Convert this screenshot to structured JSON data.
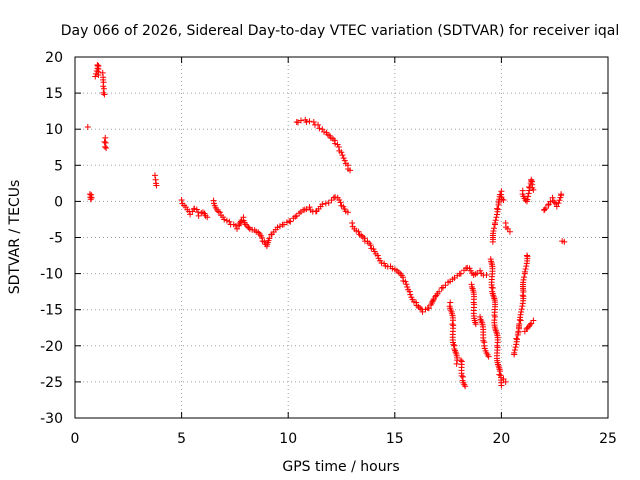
{
  "chart_data": {
    "type": "scatter",
    "title": "Day 066 of 2026, Sidereal Day-to-day VTEC variation (SDTVAR) for receiver iqal",
    "xlabel": "GPS time / hours",
    "ylabel": "SDTVAR / TECUs",
    "xlim": [
      0,
      25
    ],
    "ylim": [
      -30,
      20
    ],
    "xticks": [
      0,
      5,
      10,
      15,
      20,
      25
    ],
    "yticks": [
      20,
      15,
      10,
      5,
      0,
      -5,
      -10,
      -15,
      -20,
      -25,
      -30
    ],
    "grid": true,
    "marker": "plus",
    "color": "#ff0000",
    "series": [
      {
        "name": "SDTVAR",
        "segments": [
          [
            [
              0.6,
              10.3
            ]
          ],
          [
            [
              0.7,
              1.0
            ],
            [
              0.72,
              0.6
            ],
            [
              0.74,
              0.3
            ],
            [
              0.76,
              0.9
            ],
            [
              0.78,
              0.5
            ]
          ],
          [
            [
              0.95,
              17.3
            ],
            [
              1.05,
              18.9
            ],
            [
              1.1,
              17.5
            ]
          ],
          [
            [
              1.3,
              17.8
            ],
            [
              1.32,
              17.2
            ],
            [
              1.34,
              16.5
            ],
            [
              1.36,
              15.6
            ],
            [
              1.38,
              14.8
            ]
          ],
          [
            [
              1.42,
              8.8
            ],
            [
              1.44,
              8.1
            ],
            [
              1.46,
              7.4
            ]
          ],
          [
            [
              3.75,
              3.6
            ],
            [
              3.78,
              3.0
            ],
            [
              3.8,
              2.5
            ],
            [
              3.82,
              2.2
            ]
          ],
          [
            [
              5.0,
              0.2
            ],
            [
              5.2,
              -0.8
            ],
            [
              5.4,
              -1.8
            ],
            [
              5.6,
              -1.0
            ],
            [
              5.8,
              -2.0
            ],
            [
              6.0,
              -1.5
            ],
            [
              6.2,
              -2.2
            ]
          ],
          [
            [
              6.5,
              0.1
            ],
            [
              6.8,
              -1.5
            ],
            [
              7.0,
              -2.5
            ],
            [
              7.3,
              -3.2
            ],
            [
              7.6,
              -3.8
            ],
            [
              7.9,
              -2.2
            ],
            [
              8.2,
              -3.8
            ],
            [
              8.5,
              -4.2
            ],
            [
              8.8,
              -5.5
            ],
            [
              9.0,
              -6.2
            ],
            [
              9.2,
              -4.6
            ],
            [
              9.5,
              -3.6
            ],
            [
              9.8,
              -3.2
            ],
            [
              10.1,
              -2.8
            ],
            [
              10.4,
              -2.0
            ],
            [
              10.7,
              -1.2
            ],
            [
              11.0,
              -0.8
            ],
            [
              11.3,
              -1.4
            ],
            [
              11.6,
              -0.4
            ],
            [
              11.9,
              -0.2
            ],
            [
              12.2,
              0.6
            ],
            [
              12.5,
              -0.6
            ],
            [
              12.8,
              -1.5
            ]
          ],
          [
            [
              10.4,
              11.0
            ],
            [
              10.6,
              11.2
            ],
            [
              10.8,
              11.3
            ],
            [
              11.0,
              11.1
            ],
            [
              11.2,
              11.0
            ],
            [
              11.4,
              10.6
            ],
            [
              11.6,
              10.0
            ],
            [
              11.8,
              9.5
            ],
            [
              12.0,
              8.8
            ],
            [
              12.2,
              8.0
            ],
            [
              12.4,
              7.0
            ],
            [
              12.6,
              6.0
            ],
            [
              12.8,
              5.0
            ],
            [
              12.9,
              4.3
            ]
          ],
          [
            [
              13.0,
              -3.0
            ],
            [
              13.3,
              -4.2
            ],
            [
              13.6,
              -5.5
            ],
            [
              13.9,
              -6.5
            ],
            [
              14.2,
              -7.5
            ],
            [
              14.5,
              -8.6
            ],
            [
              14.8,
              -9.0
            ],
            [
              15.1,
              -9.6
            ],
            [
              15.4,
              -11.0
            ],
            [
              15.7,
              -12.5
            ],
            [
              16.0,
              -14.0
            ],
            [
              16.3,
              -15.3
            ],
            [
              16.6,
              -14.8
            ],
            [
              16.9,
              -13.2
            ],
            [
              17.2,
              -12.0
            ],
            [
              17.5,
              -11.2
            ],
            [
              17.8,
              -10.6
            ],
            [
              18.1,
              -10.0
            ],
            [
              18.4,
              -9.2
            ],
            [
              18.7,
              -10.2
            ],
            [
              19.0,
              -9.6
            ],
            [
              19.3,
              -10.2
            ]
          ],
          [
            [
              17.6,
              -14.0
            ],
            [
              17.7,
              -17.0
            ],
            [
              17.8,
              -20.0
            ],
            [
              17.9,
              -22.5
            ]
          ],
          [
            [
              18.1,
              -22.0
            ],
            [
              18.2,
              -24.3
            ],
            [
              18.3,
              -25.6
            ]
          ],
          [
            [
              18.6,
              -11.5
            ],
            [
              18.7,
              -14.0
            ],
            [
              18.8,
              -17.0
            ]
          ],
          [
            [
              19.0,
              -16.0
            ],
            [
              19.2,
              -19.5
            ],
            [
              19.4,
              -21.5
            ]
          ],
          [
            [
              19.5,
              -8.0
            ],
            [
              19.6,
              -12.0
            ],
            [
              19.7,
              -16.0
            ],
            [
              19.8,
              -20.0
            ],
            [
              19.9,
              -24.0
            ],
            [
              20.0,
              -25.5
            ]
          ],
          [
            [
              19.6,
              -5.6
            ],
            [
              19.7,
              -3.2
            ],
            [
              19.8,
              -1.0
            ],
            [
              19.9,
              0.3
            ],
            [
              20.0,
              1.4
            ],
            [
              20.1,
              0.2
            ]
          ],
          [
            [
              20.2,
              -3.0
            ],
            [
              20.3,
              -3.8
            ],
            [
              20.4,
              -4.2
            ]
          ],
          [
            [
              20.1,
              -24.6
            ],
            [
              20.2,
              -25.0
            ]
          ],
          [
            [
              20.6,
              -21.2
            ],
            [
              20.7,
              -19.0
            ],
            [
              20.8,
              -18.0
            ],
            [
              20.9,
              -16.5
            ],
            [
              21.0,
              -13.0
            ],
            [
              21.1,
              -10.0
            ],
            [
              21.2,
              -7.5
            ]
          ],
          [
            [
              21.1,
              -18.0
            ],
            [
              21.3,
              -17.3
            ],
            [
              21.5,
              -16.5
            ]
          ],
          [
            [
              21.0,
              1.5
            ],
            [
              21.2,
              0.0
            ],
            [
              21.3,
              2.0
            ],
            [
              21.4,
              3.0
            ],
            [
              21.5,
              1.6
            ]
          ],
          [
            [
              22.0,
              -1.2
            ],
            [
              22.2,
              -0.5
            ],
            [
              22.4,
              0.5
            ],
            [
              22.6,
              -0.7
            ],
            [
              22.8,
              1.0
            ]
          ],
          [
            [
              22.85,
              -5.5
            ],
            [
              22.95,
              -5.6
            ]
          ]
        ]
      }
    ]
  }
}
